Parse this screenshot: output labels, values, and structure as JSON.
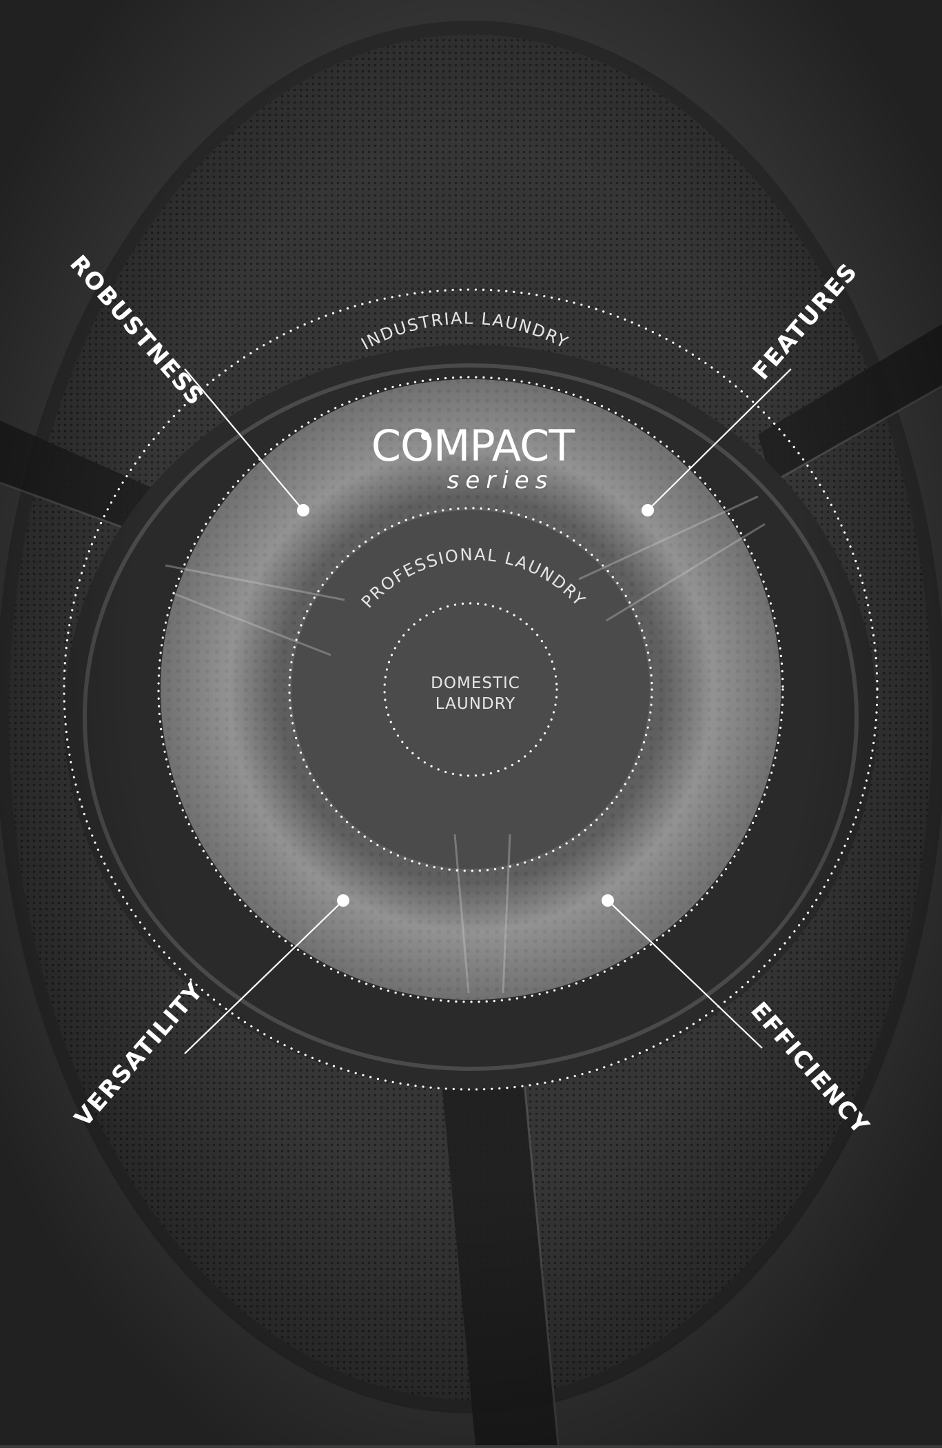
{
  "logo": {
    "brand": "COMPACT",
    "sub": "series"
  },
  "rings": {
    "industrial": "INDUSTRIAL LAUNDRY",
    "professional": "PROFESSIONAL LAUNDRY",
    "domestic_line1": "DOMESTIC",
    "domestic_line2": "LAUNDRY"
  },
  "callouts": {
    "robustness": "ROBUSTNESS",
    "features": "FEATURES",
    "versatility": "VERSATILITY",
    "efficiency": "EFFICIENCY"
  },
  "colors": {
    "background": "#3a3a3a",
    "drum_dark": "#2b2b2b",
    "drum_mid": "#4a4a4a",
    "ring_light": "#8a8a8a",
    "text": "#ffffff"
  }
}
